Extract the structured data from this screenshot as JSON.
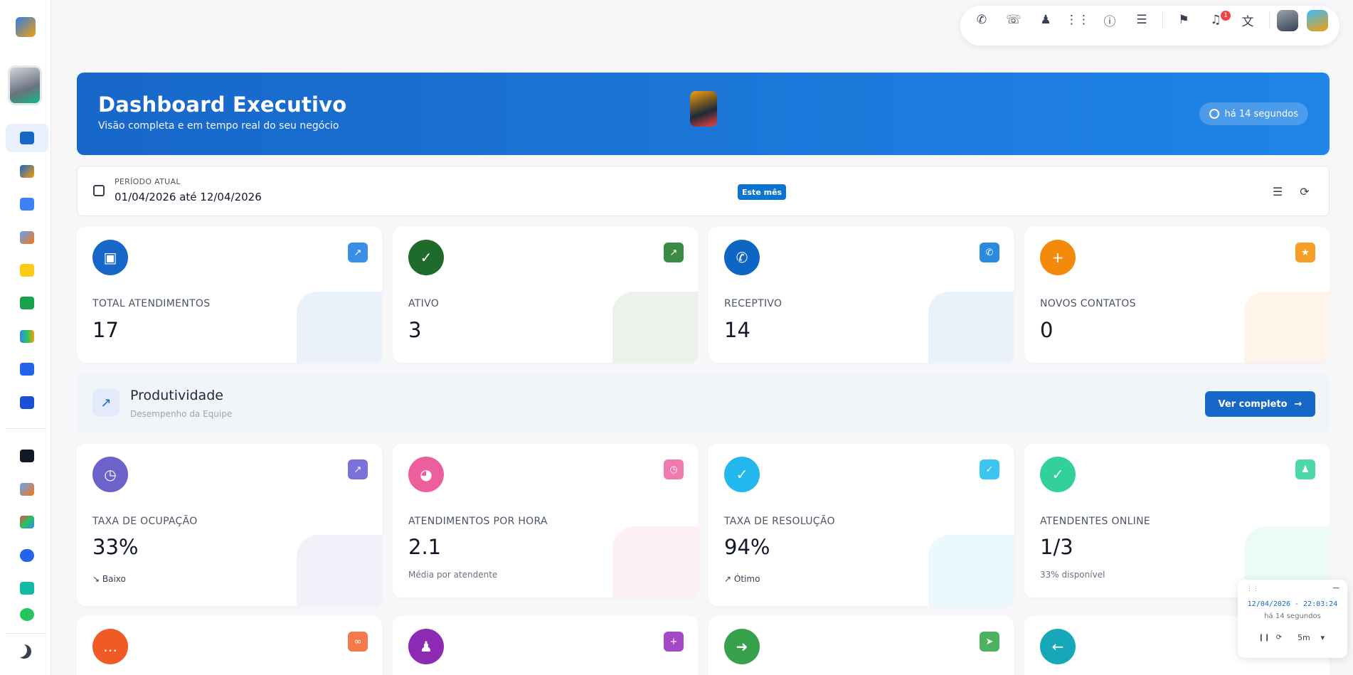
{
  "colors": {
    "primary": "#1767c9",
    "chip": "#0b74d1"
  },
  "topbar": {
    "icons": [
      "phone-icon",
      "phone-transfer-icon",
      "group-icon",
      "dialpad-icon",
      "help-icon",
      "server-icon",
      "megaphone-icon",
      "bell-icon",
      "translate-icon",
      "user-avatar",
      "status-avatar"
    ],
    "notification_count": "1"
  },
  "hero": {
    "title": "Dashboard Executivo",
    "subtitle": "Visão completa e em tempo real do seu negócio",
    "updated": "há 14 segundos"
  },
  "period": {
    "label": "PERÍODO ATUAL",
    "value": "01/04/2026 até 12/04/2026",
    "chip": "Este mês"
  },
  "stats_row1": [
    {
      "label": "TOTAL ATENDIMENTOS",
      "value": "17",
      "icon": "contact-card-icon",
      "color": "#1767c9",
      "mini_color": "#3b8ee8"
    },
    {
      "label": "ATIVO",
      "value": "3",
      "icon": "user-check-icon",
      "color": "#1e6b2c",
      "mini_color": "#3a8a46"
    },
    {
      "label": "RECEPTIVO",
      "value": "14",
      "icon": "phone-incoming-icon",
      "color": "#0c66c2",
      "mini_color": "#2b8ae0"
    },
    {
      "label": "NOVOS CONTATOS",
      "value": "0",
      "icon": "user-plus-icon",
      "color": "#f48a0c",
      "mini_color": "#f59e2a"
    }
  ],
  "productivity": {
    "title": "Produtividade",
    "subtitle": "Desempenho da Equipe",
    "button": "Ver completo"
  },
  "stats_row2": [
    {
      "label": "TAXA DE OCUPAÇÃO",
      "value": "33%",
      "foot": "Baixo",
      "icon": "clock-icon",
      "color": "#6b63c9",
      "mini_color": "#7a72d8"
    },
    {
      "label": "ATENDIMENTOS POR HORA",
      "value": "2.1",
      "foot": "Média por atendente",
      "icon": "speedometer-icon",
      "color": "#ec5f9c",
      "mini_color": "#f079ad"
    },
    {
      "label": "TAXA DE RESOLUÇÃO",
      "value": "94%",
      "foot": "Ótimo",
      "icon": "check-circle-icon",
      "color": "#22b8ee",
      "mini_color": "#3cc4f0"
    },
    {
      "label": "ATENDENTES ONLINE",
      "value": "1/3",
      "foot": "33% disponível",
      "icon": "user-online-icon",
      "color": "#33d19a",
      "mini_color": "#4cd8a7"
    }
  ],
  "stats_row3": [
    {
      "icon": "chat-icon",
      "color": "#f05a24",
      "mini_color": "#f47a4c"
    },
    {
      "icon": "group-icon",
      "color": "#8d2bb5",
      "mini_color": "#a349c6"
    },
    {
      "icon": "forward-icon",
      "color": "#36a04a",
      "mini_color": "#4cb25f"
    },
    {
      "icon": "reply-icon",
      "color": "#16a7b8",
      "mini_color": "#32b8c7"
    }
  ],
  "widget": {
    "datetime": "12/04/2026 - 22:03:24",
    "ago": "há 14 segundos",
    "interval": "5m"
  }
}
